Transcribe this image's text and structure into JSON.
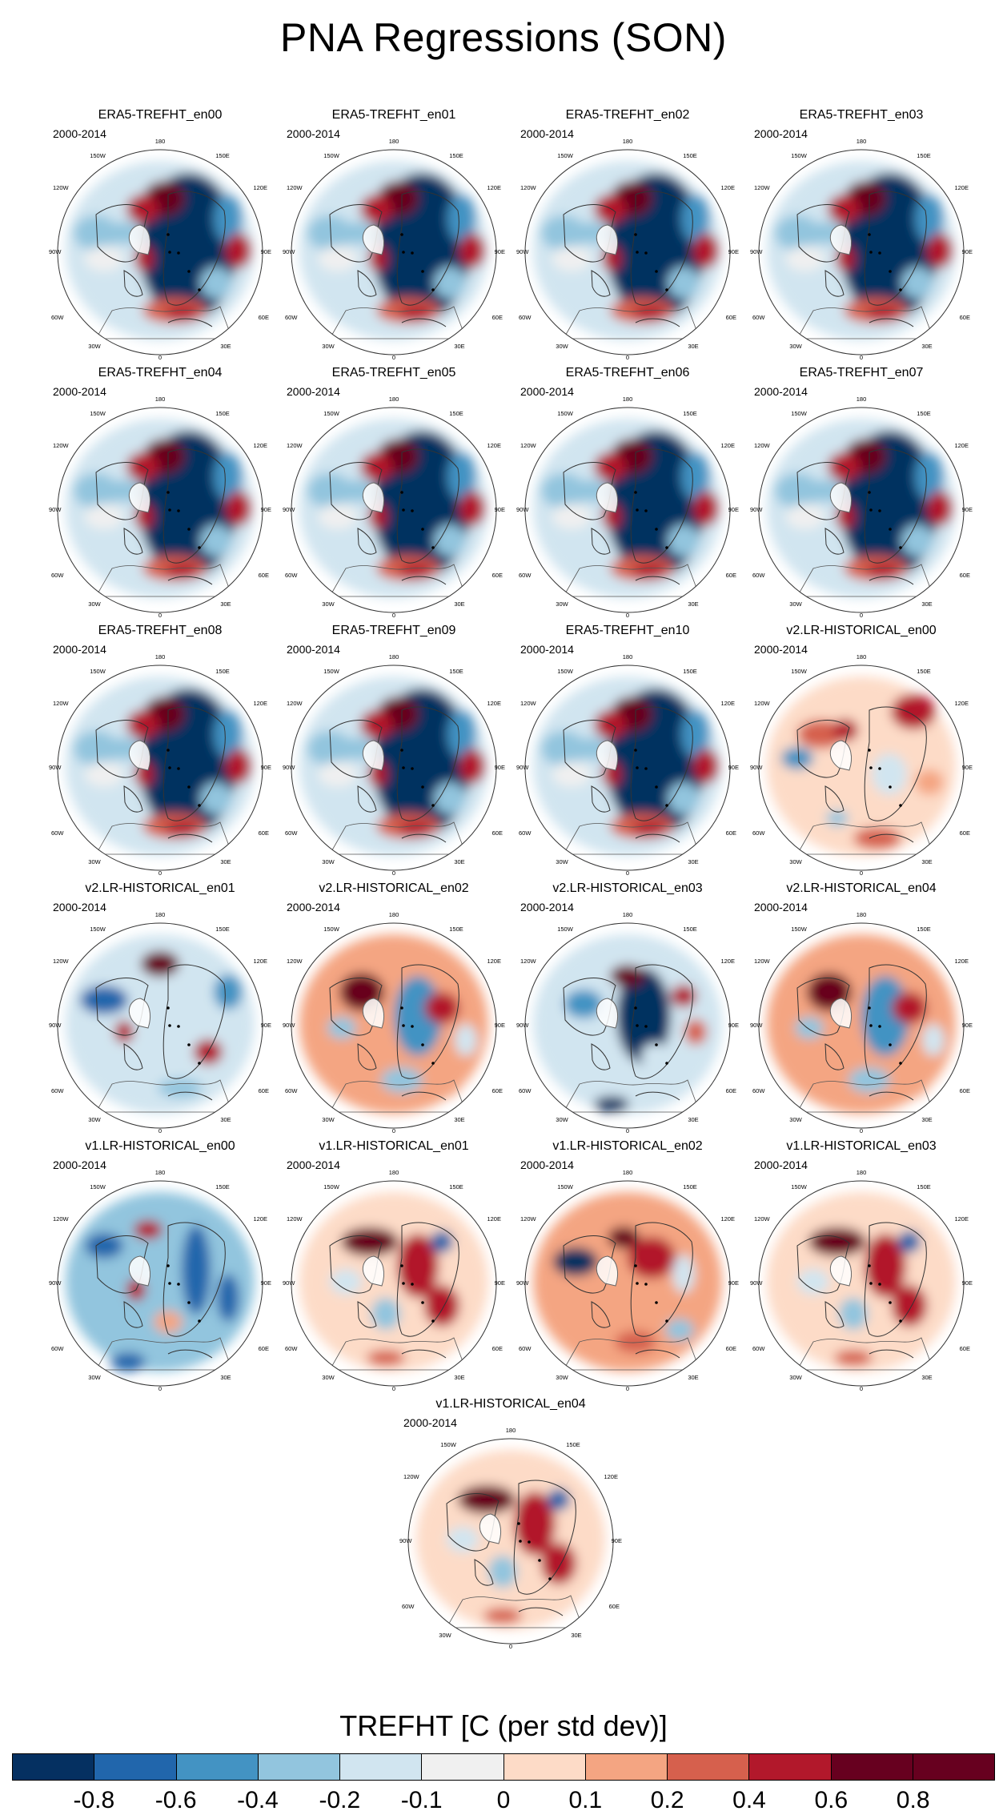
{
  "title": "PNA Regressions (SON)",
  "period": "2000-2014",
  "panels": [
    {
      "name": "ERA5-TREFHT_en00",
      "group": "era5"
    },
    {
      "name": "ERA5-TREFHT_en01",
      "group": "era5"
    },
    {
      "name": "ERA5-TREFHT_en02",
      "group": "era5"
    },
    {
      "name": "ERA5-TREFHT_en03",
      "group": "era5"
    },
    {
      "name": "ERA5-TREFHT_en04",
      "group": "era5"
    },
    {
      "name": "ERA5-TREFHT_en05",
      "group": "era5"
    },
    {
      "name": "ERA5-TREFHT_en06",
      "group": "era5"
    },
    {
      "name": "ERA5-TREFHT_en07",
      "group": "era5"
    },
    {
      "name": "ERA5-TREFHT_en08",
      "group": "era5"
    },
    {
      "name": "ERA5-TREFHT_en09",
      "group": "era5"
    },
    {
      "name": "ERA5-TREFHT_en10",
      "group": "era5"
    },
    {
      "name": "v2.LR-HISTORICAL_en00",
      "group": "v2a"
    },
    {
      "name": "v2.LR-HISTORICAL_en01",
      "group": "v2b"
    },
    {
      "name": "v2.LR-HISTORICAL_en02",
      "group": "v2c"
    },
    {
      "name": "v2.LR-HISTORICAL_en03",
      "group": "v2d"
    },
    {
      "name": "v2.LR-HISTORICAL_en04",
      "group": "v2c"
    },
    {
      "name": "v1.LR-HISTORICAL_en00",
      "group": "v1a"
    },
    {
      "name": "v1.LR-HISTORICAL_en01",
      "group": "v1b"
    },
    {
      "name": "v1.LR-HISTORICAL_en02",
      "group": "v1c"
    },
    {
      "name": "v1.LR-HISTORICAL_en03",
      "group": "v1b"
    },
    {
      "name": "v1.LR-HISTORICAL_en04",
      "group": "v1b"
    }
  ],
  "longitude_labels": {
    "top": "180",
    "upper_left": "150W",
    "upper_right": "150E",
    "mid_upper_left": "120W",
    "mid_upper_right": "120E",
    "left": "90W",
    "right": "90E",
    "mid_lower_left": "60W",
    "mid_lower_right": "60E",
    "lower_left": "30W",
    "lower_right": "30E",
    "bottom": "0"
  },
  "colorbar": {
    "title": "TREFHT [C (per std dev)]",
    "colors": [
      "#053061",
      "#2166ac",
      "#4393c3",
      "#92c5de",
      "#d1e5f0",
      "#f0f0f0",
      "#fddbc7",
      "#f4a582",
      "#d6604d",
      "#b2182b",
      "#67001f",
      "#67001f"
    ],
    "ticks": [
      "-0.8",
      "-0.6",
      "-0.4",
      "-0.2",
      "-0.1",
      "0",
      "0.1",
      "0.2",
      "0.4",
      "0.6",
      "0.8"
    ]
  }
}
